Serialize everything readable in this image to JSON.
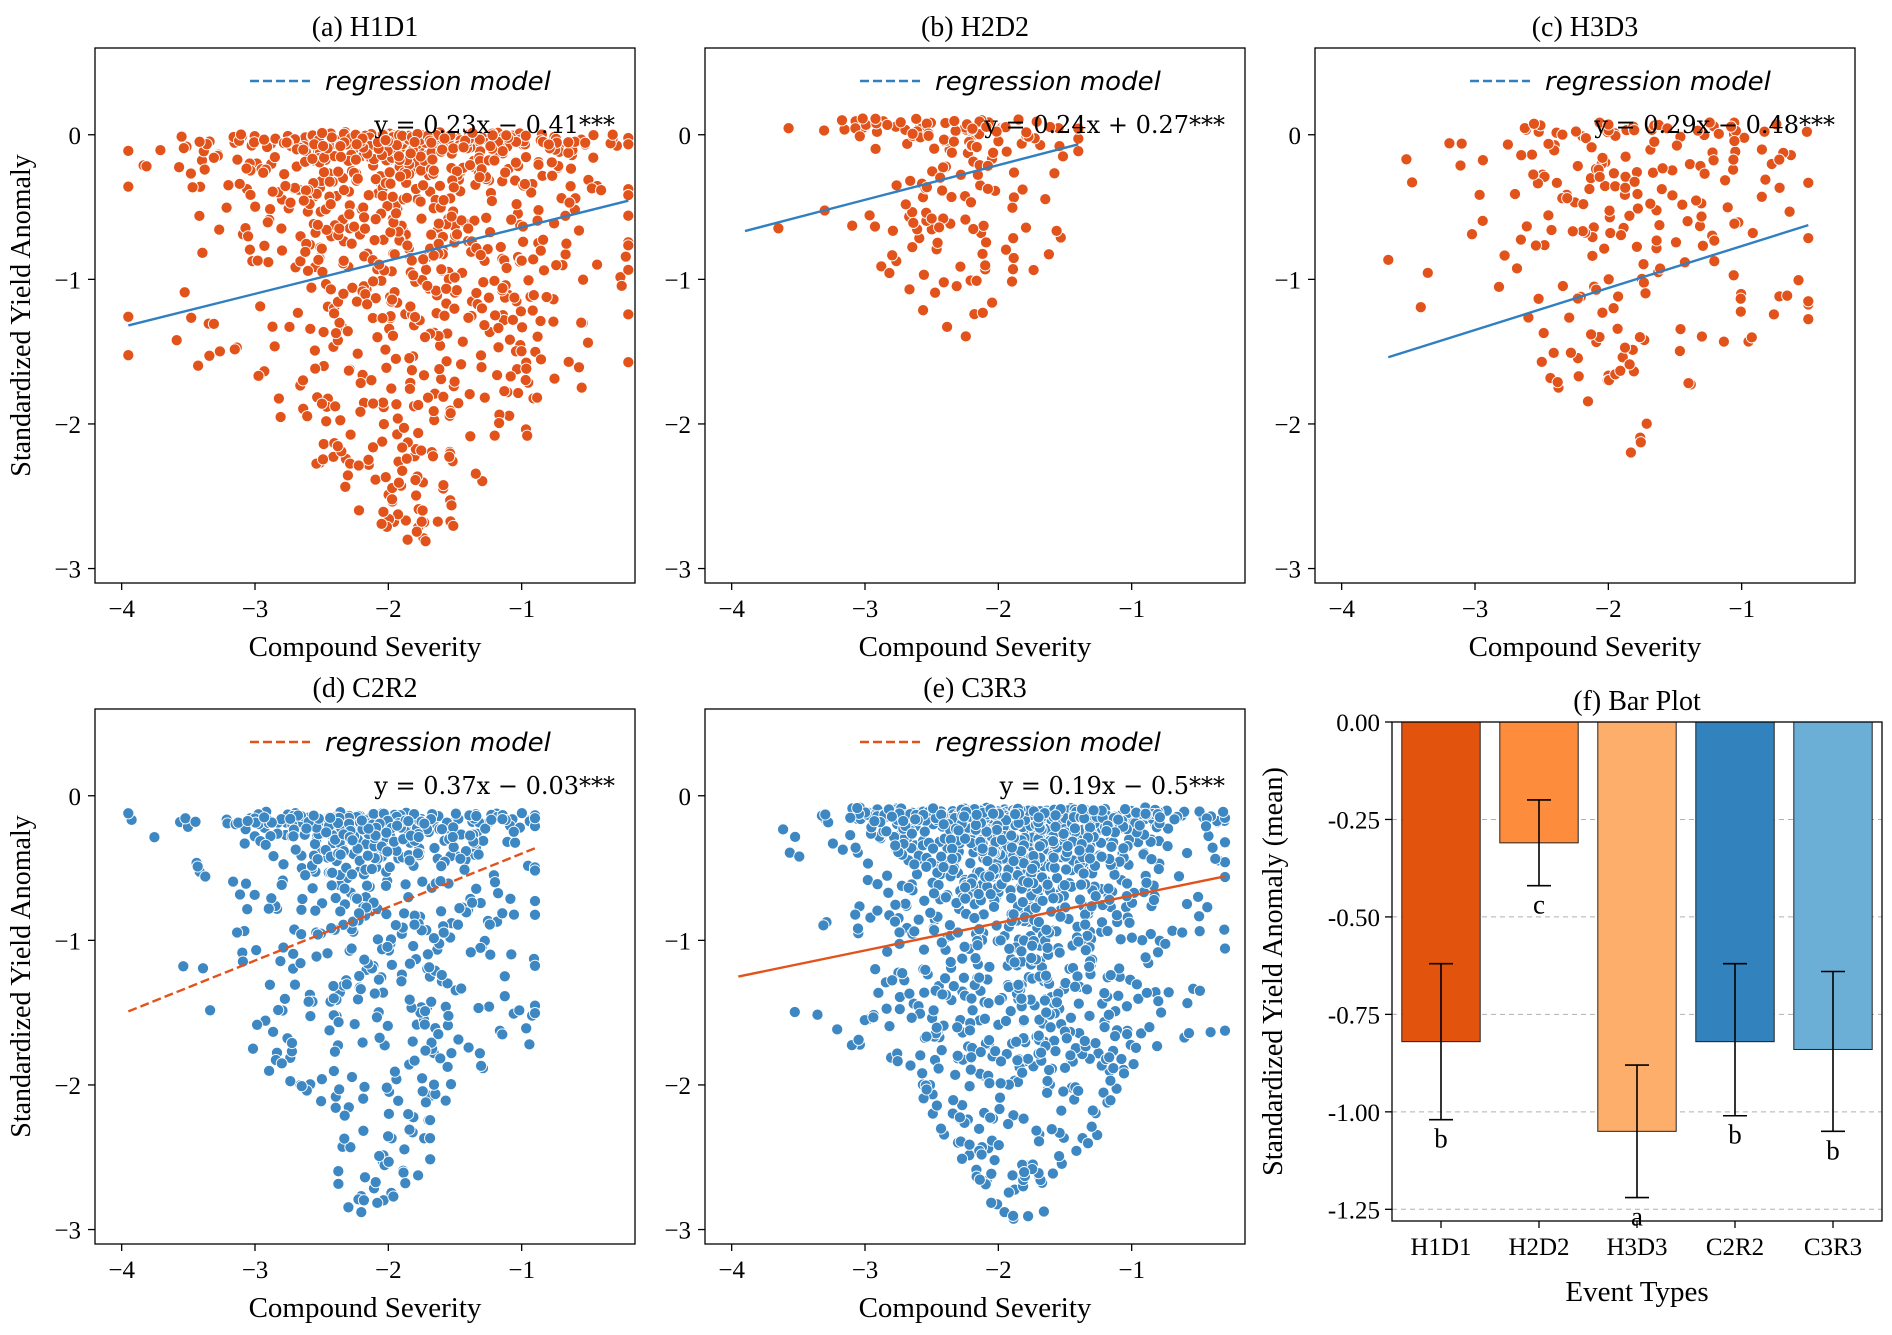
{
  "colors": {
    "orange": "#E2531B",
    "blue": "#3D87C3",
    "line_blue": "#2F7FC1",
    "line_orange": "#E2531B",
    "bars": [
      "#E2530E",
      "#FD8C3C",
      "#FDAE6B",
      "#3182BD",
      "#6BAED6"
    ]
  },
  "chart_data": [
    {
      "id": "a",
      "type": "scatter",
      "title": "(a) H1D1",
      "xlabel": "Compound Severity",
      "ylabel": "Standardized Yield Anomaly",
      "xlim": [
        -4.2,
        -0.15
      ],
      "ylim": [
        -3.1,
        0.6
      ],
      "xticks": [
        -4,
        -3,
        -2,
        -1
      ],
      "yticks": [
        0,
        -1,
        -2,
        -3
      ],
      "point_color": "orange",
      "line_color": "line_blue",
      "line_style": "dashed-solid",
      "legend": "regression model",
      "equation": "y = 0.23x − 0.41***",
      "fit": {
        "slope": 0.23,
        "intercept": -0.41,
        "x_range": [
          -3.95,
          -0.2
        ]
      },
      "cloud": {
        "count": 900,
        "x_center": -1.85,
        "x_spread": 0.75,
        "y_top": -0.02,
        "y_bottom": -2.85,
        "x_min": -3.95,
        "x_max": -0.2,
        "density_bias": 0.6
      }
    },
    {
      "id": "b",
      "type": "scatter",
      "title": "(b) H2D2",
      "xlabel": "Compound Severity",
      "ylabel": "",
      "xlim": [
        -4.2,
        -0.15
      ],
      "ylim": [
        -3.1,
        0.6
      ],
      "xticks": [
        -4,
        -3,
        -2,
        -1
      ],
      "yticks": [
        0,
        -1,
        -2,
        -3
      ],
      "point_color": "orange",
      "line_color": "line_blue",
      "line_style": "solid",
      "legend": "regression model",
      "equation": "y = 0.24x + 0.27***",
      "fit": {
        "slope": 0.24,
        "intercept": 0.27,
        "x_range": [
          -3.9,
          -1.4
        ]
      },
      "cloud": {
        "count": 170,
        "x_center": -2.3,
        "x_spread": 0.45,
        "y_top": 0.08,
        "y_bottom": -1.4,
        "x_min": -3.9,
        "x_max": -1.4,
        "density_bias": 0.45
      }
    },
    {
      "id": "c",
      "type": "scatter",
      "title": "(c) H3D3",
      "xlabel": "Compound Severity",
      "ylabel": "",
      "xlim": [
        -4.2,
        -0.15
      ],
      "ylim": [
        -3.1,
        0.6
      ],
      "xticks": [
        -4,
        -3,
        -2,
        -1
      ],
      "yticks": [
        0,
        -1,
        -2,
        -3
      ],
      "point_color": "orange",
      "line_color": "line_blue",
      "line_style": "solid",
      "legend": "regression model",
      "equation": "y = 0.29x − 0.48***",
      "fit": {
        "slope": 0.29,
        "intercept": -0.48,
        "x_range": [
          -3.65,
          -0.5
        ]
      },
      "cloud": {
        "count": 230,
        "x_center": -1.8,
        "x_spread": 0.65,
        "y_top": 0.05,
        "y_bottom": -2.25,
        "x_min": -3.65,
        "x_max": -0.5,
        "density_bias": 0.3
      }
    },
    {
      "id": "d",
      "type": "scatter",
      "title": "(d) C2R2",
      "xlabel": "Compound Severity",
      "ylabel": "Standardized Yield Anomaly",
      "xlim": [
        -4.2,
        -0.15
      ],
      "ylim": [
        -3.1,
        0.6
      ],
      "xticks": [
        -4,
        -3,
        -2,
        -1
      ],
      "yticks": [
        0,
        -1,
        -2,
        -3
      ],
      "point_color": "blue",
      "line_color": "line_orange",
      "line_style": "dashed",
      "legend": "regression model",
      "equation": "y = 0.37x − 0.03***",
      "fit": {
        "slope": 0.37,
        "intercept": -0.03,
        "x_range": [
          -3.95,
          -0.9
        ]
      },
      "cloud": {
        "count": 650,
        "x_center": -2.1,
        "x_spread": 0.55,
        "y_top": -0.15,
        "y_bottom": -2.95,
        "x_min": -3.95,
        "x_max": -0.9,
        "density_bias": 0.7
      }
    },
    {
      "id": "e",
      "type": "scatter",
      "title": "(e) C3R3",
      "xlabel": "Compound Severity",
      "ylabel": "",
      "xlim": [
        -4.2,
        -0.15
      ],
      "ylim": [
        -3.1,
        0.6
      ],
      "xticks": [
        -4,
        -3,
        -2,
        -1
      ],
      "yticks": [
        0,
        -1,
        -2,
        -3
      ],
      "point_color": "blue",
      "line_color": "line_orange",
      "line_style": "dashed-solid",
      "legend": "regression model",
      "equation": "y = 0.19x − 0.5***",
      "fit": {
        "slope": 0.19,
        "intercept": -0.5,
        "x_range": [
          -3.95,
          -0.3
        ]
      },
      "cloud": {
        "count": 1300,
        "x_center": -1.85,
        "x_spread": 0.6,
        "y_top": -0.12,
        "y_bottom": -2.95,
        "x_min": -3.95,
        "x_max": -0.3,
        "density_bias": 0.7
      }
    },
    {
      "id": "f",
      "type": "bar",
      "title": "(f) Bar Plot",
      "xlabel": "Event Types",
      "ylabel": "Standardized Yield Anomaly (mean)",
      "categories": [
        "H1D1",
        "H2D2",
        "H3D3",
        "C2R2",
        "C3R3"
      ],
      "values": [
        -0.82,
        -0.31,
        -1.05,
        -0.82,
        -0.84
      ],
      "error_low": [
        -1.02,
        -0.42,
        -1.22,
        -1.01,
        -1.05
      ],
      "error_high": [
        -0.62,
        -0.2,
        -0.88,
        -0.62,
        -0.64
      ],
      "letters": [
        "b",
        "c",
        "a",
        "b",
        "b"
      ],
      "ylim": [
        -1.28,
        0.0
      ],
      "yticks": [
        "0.00",
        "-0.25",
        "-0.50",
        "-0.75",
        "-1.00",
        "-1.25"
      ],
      "grid": "horizontal dashed"
    }
  ]
}
